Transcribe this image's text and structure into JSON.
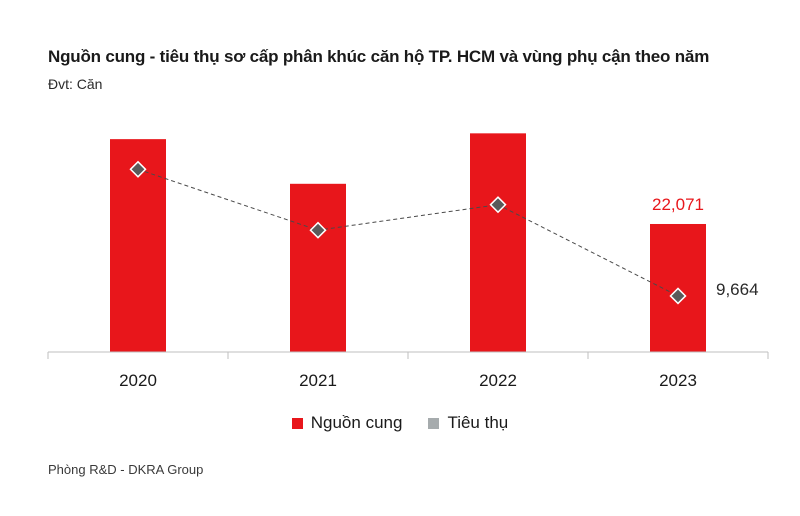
{
  "title": "Nguồn cung - tiêu thụ sơ cấp phân khúc căn hộ TP. HCM và vùng phụ cận theo năm",
  "unit": "Đvt: Căn",
  "source": "Phòng R&D - DKRA Group",
  "colors": {
    "supply": "#e8161b",
    "consumption_legend": "#a6abad",
    "marker": "#5a5a5a",
    "axis": "#bfbfbf"
  },
  "chart_data": {
    "type": "bar",
    "categories": [
      "2020",
      "2021",
      "2022",
      "2023"
    ],
    "series": [
      {
        "name": "Nguồn cung",
        "type": "bar",
        "values": [
          36700,
          29000,
          37700,
          22071
        ]
      },
      {
        "name": "Tiêu thụ",
        "type": "line",
        "values": [
          31500,
          21000,
          25400,
          9664
        ]
      }
    ],
    "data_labels": [
      {
        "series": "Nguồn cung",
        "category": "2023",
        "text": "22,071"
      },
      {
        "series": "Tiêu thụ",
        "category": "2023",
        "text": "9,664"
      }
    ],
    "ylim": [
      0,
      50000
    ],
    "grid": false,
    "legend": "bottom-center"
  }
}
